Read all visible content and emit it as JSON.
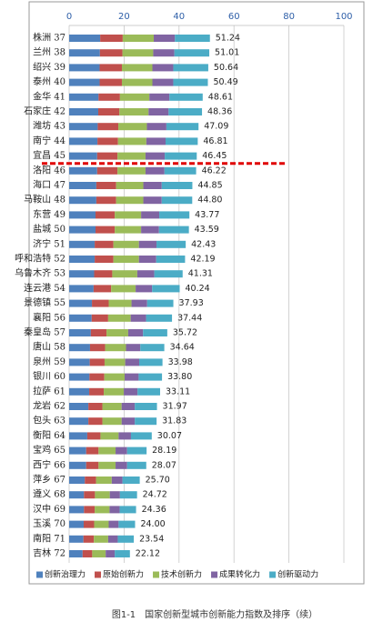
{
  "chart_data": {
    "type": "stacked_barh",
    "caption": "图1-1　国家创新型城市创新能力指数及排序（续）",
    "categories": [
      "株洲 37",
      "兰州 38",
      "绍兴 39",
      "泰州 40",
      "金华 41",
      "石家庄 42",
      "潍坊 43",
      "南宁 44",
      "宜昌 45",
      "洛阳 46",
      "海口 47",
      "马鞍山 48",
      "东营 49",
      "盐城 50",
      "济宁 51",
      "呼和浩特 52",
      "乌鲁木齐 53",
      "连云港 54",
      "景德镇 55",
      "襄阳 56",
      "秦皇岛 57",
      "唐山 58",
      "泉州 59",
      "银川 60",
      "拉萨 61",
      "龙岩 62",
      "包头 63",
      "衡阳 64",
      "宝鸡 65",
      "西宁 66",
      "萍乡 67",
      "遵义 68",
      "汉中 69",
      "玉溪 70",
      "南阳 71",
      "吉林 72"
    ],
    "series": [
      {
        "name": "创新治理力",
        "color": "#4f81bd",
        "values": [
          11.3,
          11.2,
          11.1,
          11.1,
          10.7,
          10.6,
          10.4,
          10.3,
          10.2,
          10.2,
          9.9,
          9.9,
          9.6,
          9.6,
          9.3,
          9.3,
          9.1,
          8.9,
          8.3,
          8.2,
          7.9,
          7.6,
          7.5,
          7.4,
          7.3,
          7.0,
          7.0,
          6.6,
          6.2,
          6.2,
          5.7,
          5.4,
          5.4,
          5.3,
          5.2,
          4.9
        ]
      },
      {
        "name": "原始创新力",
        "color": "#c0504d",
        "values": [
          8.2,
          8.2,
          8.1,
          8.1,
          7.8,
          7.7,
          7.5,
          7.5,
          7.4,
          7.4,
          7.2,
          7.2,
          7.0,
          7.0,
          6.8,
          6.8,
          6.6,
          6.4,
          6.1,
          6.0,
          5.7,
          5.5,
          5.4,
          5.4,
          5.3,
          5.1,
          5.1,
          4.8,
          4.5,
          4.5,
          4.1,
          4.0,
          3.9,
          3.8,
          3.8,
          3.5
        ]
      },
      {
        "name": "技术创新力",
        "color": "#9bbb59",
        "values": [
          11.3,
          11.2,
          11.1,
          11.1,
          10.7,
          10.6,
          10.4,
          10.3,
          10.2,
          10.2,
          9.9,
          9.9,
          9.6,
          9.6,
          9.3,
          9.3,
          9.1,
          8.9,
          8.3,
          8.2,
          7.9,
          7.6,
          7.5,
          7.4,
          7.3,
          7.0,
          7.0,
          6.6,
          6.2,
          6.2,
          5.7,
          5.4,
          5.4,
          5.3,
          5.2,
          4.9
        ]
      },
      {
        "name": "成果转化力",
        "color": "#8064a2",
        "values": [
          7.7,
          7.7,
          7.6,
          7.6,
          7.3,
          7.3,
          7.1,
          7.0,
          7.0,
          6.9,
          6.7,
          6.7,
          6.6,
          6.5,
          6.4,
          6.3,
          6.2,
          6.0,
          5.7,
          5.6,
          5.4,
          5.2,
          5.1,
          5.1,
          5.0,
          4.8,
          4.8,
          4.5,
          4.2,
          4.2,
          3.9,
          3.7,
          3.7,
          3.6,
          3.5,
          3.3
        ]
      },
      {
        "name": "创新驱动力",
        "color": "#4bacc6",
        "values": [
          12.74,
          12.71,
          12.74,
          12.59,
          12.11,
          12.16,
          11.69,
          11.71,
          11.65,
          11.52,
          11.15,
          11.1,
          10.97,
          10.89,
          10.63,
          10.49,
          10.31,
          10.04,
          9.53,
          9.44,
          8.82,
          8.74,
          8.48,
          8.5,
          8.21,
          8.07,
          7.93,
          7.57,
          7.09,
          6.97,
          6.3,
          6.22,
          5.96,
          6.0,
          5.84,
          5.52
        ]
      }
    ],
    "totals": [
      51.24,
      51.01,
      50.64,
      50.49,
      48.61,
      48.36,
      47.09,
      46.81,
      46.45,
      46.22,
      44.85,
      44.8,
      43.77,
      43.59,
      42.43,
      42.19,
      41.31,
      40.24,
      37.93,
      37.44,
      35.72,
      34.64,
      33.98,
      33.8,
      33.11,
      31.97,
      31.83,
      30.07,
      28.19,
      28.07,
      25.7,
      24.72,
      24.36,
      24.0,
      23.54,
      22.12
    ],
    "total_labels": [
      "51.24",
      "51.01",
      "50.64",
      "50.49",
      "48.61",
      "48.36",
      "47.09",
      "46.81",
      "46.45",
      "46.22",
      "44.85",
      "44.80",
      "43.77",
      "43.59",
      "42.43",
      "42.19",
      "41.31",
      "40.24",
      "37.93",
      "37.44",
      "35.72",
      "34.64",
      "33.98",
      "33.80",
      "33.11",
      "31.97",
      "31.83",
      "30.07",
      "28.19",
      "28.07",
      "25.70",
      "24.72",
      "24.36",
      "24.00",
      "23.54",
      "22.12"
    ],
    "xlim": [
      0,
      100
    ],
    "xticks": [
      0,
      20,
      40,
      60,
      80,
      100
    ],
    "grid": true
  }
}
